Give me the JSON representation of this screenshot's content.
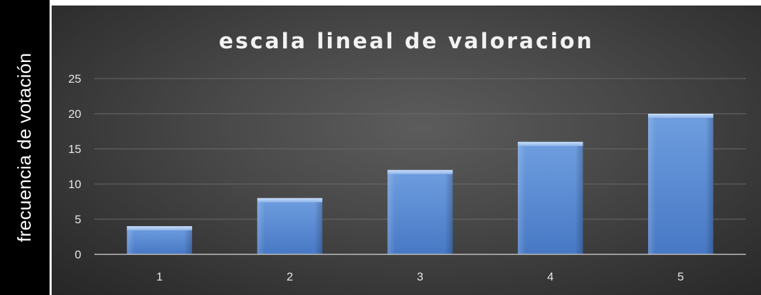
{
  "chart_data": {
    "type": "bar",
    "title": "escala lineal de valoracion",
    "xlabel": "",
    "ylabel": "frecuencia de votación",
    "categories": [
      "1",
      "2",
      "3",
      "4",
      "5"
    ],
    "values": [
      4,
      8,
      12,
      16,
      20
    ],
    "ylim": [
      0,
      25
    ],
    "yticks": [
      "0",
      "5",
      "10",
      "15",
      "20",
      "25"
    ],
    "grid": true,
    "legend": "none",
    "colors": {
      "bar": "#5b8fd6",
      "background": "#404040",
      "gridline": "#6a6a6a",
      "text": "#e6e6e6"
    }
  }
}
